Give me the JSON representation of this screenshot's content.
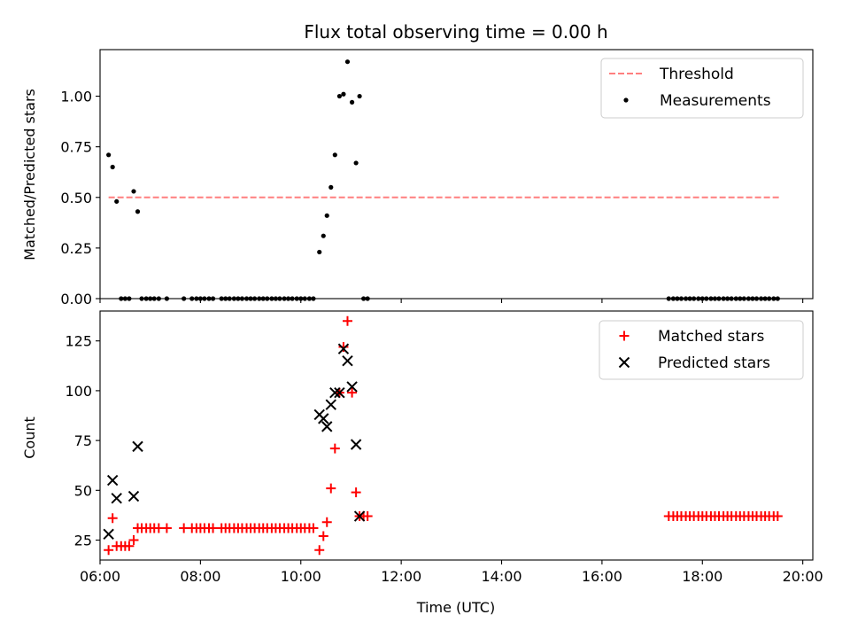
{
  "chart_data": [
    {
      "type": "scatter",
      "title": "Flux total observing time = 0.00 h",
      "ylabel": "Matched/Predicted stars",
      "xlabel": "",
      "xlim": [
        6.0,
        20.2
      ],
      "ylim": [
        0.0,
        1.23
      ],
      "x_ticks": [
        6,
        8,
        10,
        12,
        14,
        16,
        18,
        20
      ],
      "y_ticks": [
        0.0,
        0.25,
        0.5,
        0.75,
        1.0
      ],
      "y_tick_labels": [
        "0.00",
        "0.25",
        "0.50",
        "0.75",
        "1.00"
      ],
      "legend_position": "top-right",
      "series": [
        {
          "name": "Threshold",
          "kind": "dashed-line",
          "color": "#ff7f7f",
          "x": [
            6.17,
            19.55
          ],
          "y": [
            0.5,
            0.5
          ]
        },
        {
          "name": "Measurements",
          "kind": "dot",
          "color": "#000000",
          "points": [
            [
              6.17,
              0.71
            ],
            [
              6.25,
              0.65
            ],
            [
              6.33,
              0.48
            ],
            [
              6.67,
              0.53
            ],
            [
              6.75,
              0.43
            ],
            [
              6.42,
              0
            ],
            [
              6.5,
              0
            ],
            [
              6.58,
              0
            ],
            [
              6.83,
              0
            ],
            [
              6.92,
              0
            ],
            [
              7.0,
              0
            ],
            [
              7.08,
              0
            ],
            [
              7.17,
              0
            ],
            [
              7.33,
              0
            ],
            [
              7.67,
              0
            ],
            [
              7.83,
              0
            ],
            [
              7.92,
              0
            ],
            [
              8.0,
              0
            ],
            [
              8.08,
              0
            ],
            [
              8.17,
              0
            ],
            [
              8.25,
              0
            ],
            [
              8.42,
              0
            ],
            [
              8.5,
              0
            ],
            [
              8.58,
              0
            ],
            [
              8.67,
              0
            ],
            [
              8.75,
              0
            ],
            [
              8.83,
              0
            ],
            [
              8.92,
              0
            ],
            [
              9.0,
              0
            ],
            [
              9.08,
              0
            ],
            [
              9.17,
              0
            ],
            [
              9.25,
              0
            ],
            [
              9.33,
              0
            ],
            [
              9.42,
              0
            ],
            [
              9.5,
              0
            ],
            [
              9.58,
              0
            ],
            [
              9.67,
              0
            ],
            [
              9.75,
              0
            ],
            [
              9.83,
              0
            ],
            [
              9.92,
              0
            ],
            [
              10.0,
              0
            ],
            [
              10.08,
              0
            ],
            [
              10.17,
              0
            ],
            [
              10.25,
              0
            ],
            [
              10.37,
              0.23
            ],
            [
              10.45,
              0.31
            ],
            [
              10.52,
              0.41
            ],
            [
              10.6,
              0.55
            ],
            [
              10.68,
              0.71
            ],
            [
              10.77,
              1.0
            ],
            [
              10.85,
              1.01
            ],
            [
              10.93,
              1.17
            ],
            [
              11.02,
              0.97
            ],
            [
              11.1,
              0.67
            ],
            [
              11.17,
              1.0
            ],
            [
              11.25,
              0
            ],
            [
              11.33,
              0
            ],
            [
              17.33,
              0
            ],
            [
              17.42,
              0
            ],
            [
              17.5,
              0
            ],
            [
              17.58,
              0
            ],
            [
              17.67,
              0
            ],
            [
              17.75,
              0
            ],
            [
              17.83,
              0
            ],
            [
              17.92,
              0
            ],
            [
              18.0,
              0
            ],
            [
              18.08,
              0
            ],
            [
              18.17,
              0
            ],
            [
              18.25,
              0
            ],
            [
              18.33,
              0
            ],
            [
              18.42,
              0
            ],
            [
              18.5,
              0
            ],
            [
              18.58,
              0
            ],
            [
              18.67,
              0
            ],
            [
              18.75,
              0
            ],
            [
              18.83,
              0
            ],
            [
              18.92,
              0
            ],
            [
              19.0,
              0
            ],
            [
              19.08,
              0
            ],
            [
              19.17,
              0
            ],
            [
              19.25,
              0
            ],
            [
              19.33,
              0
            ],
            [
              19.42,
              0
            ],
            [
              19.5,
              0
            ]
          ]
        }
      ]
    },
    {
      "type": "scatter",
      "title": "",
      "ylabel": "Count",
      "xlabel": "Time (UTC)",
      "xlim": [
        6.0,
        20.2
      ],
      "ylim": [
        15,
        140
      ],
      "x_ticks": [
        6,
        8,
        10,
        12,
        14,
        16,
        18,
        20
      ],
      "x_tick_labels": [
        "06:00",
        "08:00",
        "10:00",
        "12:00",
        "14:00",
        "16:00",
        "18:00",
        "20:00"
      ],
      "y_ticks": [
        25,
        50,
        75,
        100,
        125
      ],
      "y_tick_labels": [
        "25",
        "50",
        "75",
        "100",
        "125"
      ],
      "legend_position": "top-right",
      "series": [
        {
          "name": "Matched stars",
          "kind": "plus",
          "color": "#ff0000",
          "points": [
            [
              6.17,
              20
            ],
            [
              6.25,
              36
            ],
            [
              6.33,
              22
            ],
            [
              6.42,
              22
            ],
            [
              6.5,
              22
            ],
            [
              6.58,
              22
            ],
            [
              6.67,
              25
            ],
            [
              6.75,
              31
            ],
            [
              6.83,
              31
            ],
            [
              6.92,
              31
            ],
            [
              7.0,
              31
            ],
            [
              7.08,
              31
            ],
            [
              7.17,
              31
            ],
            [
              7.33,
              31
            ],
            [
              7.67,
              31
            ],
            [
              7.83,
              31
            ],
            [
              7.92,
              31
            ],
            [
              8.0,
              31
            ],
            [
              8.08,
              31
            ],
            [
              8.17,
              31
            ],
            [
              8.25,
              31
            ],
            [
              8.42,
              31
            ],
            [
              8.5,
              31
            ],
            [
              8.58,
              31
            ],
            [
              8.67,
              31
            ],
            [
              8.75,
              31
            ],
            [
              8.83,
              31
            ],
            [
              8.92,
              31
            ],
            [
              9.0,
              31
            ],
            [
              9.08,
              31
            ],
            [
              9.17,
              31
            ],
            [
              9.25,
              31
            ],
            [
              9.33,
              31
            ],
            [
              9.42,
              31
            ],
            [
              9.5,
              31
            ],
            [
              9.58,
              31
            ],
            [
              9.67,
              31
            ],
            [
              9.75,
              31
            ],
            [
              9.83,
              31
            ],
            [
              9.92,
              31
            ],
            [
              10.0,
              31
            ],
            [
              10.08,
              31
            ],
            [
              10.17,
              31
            ],
            [
              10.25,
              31
            ],
            [
              10.37,
              20
            ],
            [
              10.45,
              27
            ],
            [
              10.52,
              34
            ],
            [
              10.6,
              51
            ],
            [
              10.68,
              71
            ],
            [
              10.77,
              99
            ],
            [
              10.85,
              122
            ],
            [
              10.93,
              135
            ],
            [
              11.02,
              99
            ],
            [
              11.1,
              49
            ],
            [
              11.17,
              37
            ],
            [
              11.25,
              37
            ],
            [
              11.33,
              37
            ],
            [
              17.33,
              37
            ],
            [
              17.42,
              37
            ],
            [
              17.5,
              37
            ],
            [
              17.58,
              37
            ],
            [
              17.67,
              37
            ],
            [
              17.75,
              37
            ],
            [
              17.83,
              37
            ],
            [
              17.92,
              37
            ],
            [
              18.0,
              37
            ],
            [
              18.08,
              37
            ],
            [
              18.17,
              37
            ],
            [
              18.25,
              37
            ],
            [
              18.33,
              37
            ],
            [
              18.42,
              37
            ],
            [
              18.5,
              37
            ],
            [
              18.58,
              37
            ],
            [
              18.67,
              37
            ],
            [
              18.75,
              37
            ],
            [
              18.83,
              37
            ],
            [
              18.92,
              37
            ],
            [
              19.0,
              37
            ],
            [
              19.08,
              37
            ],
            [
              19.17,
              37
            ],
            [
              19.25,
              37
            ],
            [
              19.33,
              37
            ],
            [
              19.42,
              37
            ],
            [
              19.5,
              37
            ]
          ]
        },
        {
          "name": "Predicted stars",
          "kind": "cross",
          "color": "#000000",
          "points": [
            [
              6.17,
              28
            ],
            [
              6.25,
              55
            ],
            [
              6.33,
              46
            ],
            [
              6.67,
              47
            ],
            [
              6.75,
              72
            ],
            [
              10.37,
              88
            ],
            [
              10.45,
              86
            ],
            [
              10.52,
              82
            ],
            [
              10.6,
              93
            ],
            [
              10.68,
              99
            ],
            [
              10.77,
              99
            ],
            [
              10.85,
              121
            ],
            [
              10.93,
              115
            ],
            [
              11.02,
              102
            ],
            [
              11.1,
              73
            ],
            [
              11.17,
              37
            ]
          ]
        }
      ]
    }
  ]
}
